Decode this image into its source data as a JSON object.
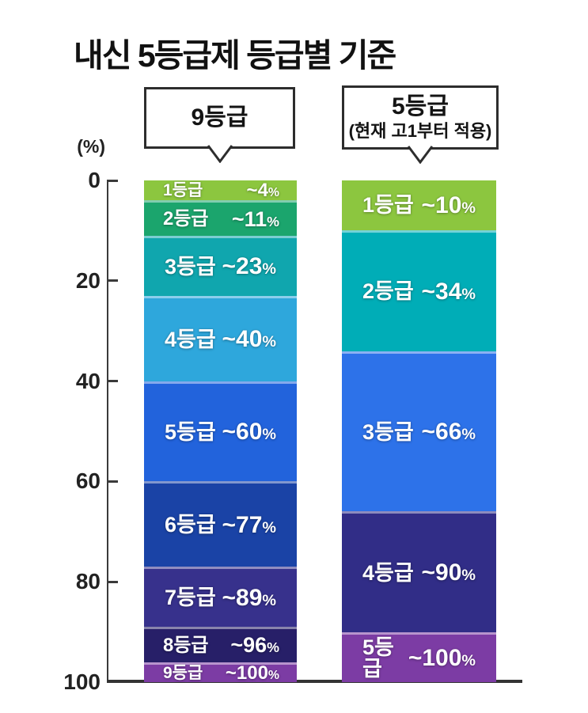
{
  "chart_data": {
    "type": "bar",
    "subtype": "stacked-cumulative-percentile-comparison",
    "title": "내신 5등급제 등급별 기준",
    "ylabel": "(%)",
    "ylim": [
      0,
      100
    ],
    "y_ticks": [
      0,
      20,
      40,
      60,
      80,
      100
    ],
    "y_axis_direction": "downward (0 at top, 100 at bottom)",
    "grid": "off",
    "bars": [
      {
        "name": "9등급",
        "note": "",
        "segments": [
          {
            "label": "1등급",
            "value": "~4",
            "unit": "%",
            "cumulative_pct": 4,
            "color": "#8cc63f"
          },
          {
            "label": "2등급",
            "value": "~11",
            "unit": "%",
            "cumulative_pct": 11,
            "color": "#1ba56d"
          },
          {
            "label": "3등급",
            "value": "~23",
            "unit": "%",
            "cumulative_pct": 23,
            "color": "#10a6ae"
          },
          {
            "label": "4등급",
            "value": "~40",
            "unit": "%",
            "cumulative_pct": 40,
            "color": "#2ea7dc"
          },
          {
            "label": "5등급",
            "value": "~60",
            "unit": "%",
            "cumulative_pct": 60,
            "color": "#2263dc"
          },
          {
            "label": "6등급",
            "value": "~77",
            "unit": "%",
            "cumulative_pct": 77,
            "color": "#1a43a6"
          },
          {
            "label": "7등급",
            "value": "~89",
            "unit": "%",
            "cumulative_pct": 89,
            "color": "#37318c"
          },
          {
            "label": "8등급",
            "value": "~96",
            "unit": "%",
            "cumulative_pct": 96,
            "color": "#271f68"
          },
          {
            "label": "9등급",
            "value": "~100",
            "unit": "%",
            "cumulative_pct": 100,
            "color": "#7c3ca4"
          }
        ]
      },
      {
        "name": "5등급",
        "note": "(현재 고1부터 적용)",
        "segments": [
          {
            "label": "1등급",
            "value": "~10",
            "unit": "%",
            "cumulative_pct": 10,
            "color": "#8cc63f"
          },
          {
            "label": "2등급",
            "value": "~34",
            "unit": "%",
            "cumulative_pct": 34,
            "color": "#00adb7"
          },
          {
            "label": "3등급",
            "value": "~66",
            "unit": "%",
            "cumulative_pct": 66,
            "color": "#2d72e9"
          },
          {
            "label": "4등급",
            "value": "~90",
            "unit": "%",
            "cumulative_pct": 90,
            "color": "#312d87"
          },
          {
            "label": "5등급",
            "value": "~100",
            "unit": "%",
            "cumulative_pct": 100,
            "color": "#7c3ca4"
          }
        ]
      }
    ]
  }
}
